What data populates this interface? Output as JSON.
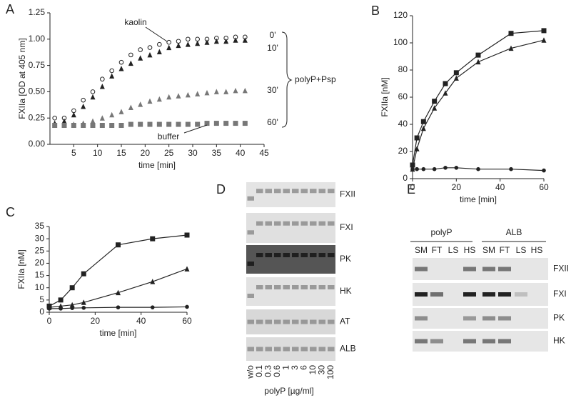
{
  "chart_data": [
    {
      "type": "scatter",
      "panel": "A",
      "xlabel": "time [min]",
      "ylabel": "FXIIa [OD at 405 nm]",
      "x": [
        1,
        3,
        5,
        7,
        9,
        11,
        13,
        15,
        17,
        19,
        21,
        23,
        25,
        27,
        29,
        31,
        33,
        35,
        37,
        39,
        41
      ],
      "xlim": [
        0,
        45
      ],
      "xticks": [
        5,
        10,
        15,
        20,
        25,
        30,
        35,
        40,
        45
      ],
      "ylim": [
        0,
        1.25
      ],
      "yticks": [
        {
          "value": 0,
          "label": "0.00"
        },
        {
          "value": 0.25,
          "label": "0.25"
        },
        {
          "value": 0.5,
          "label": "0.50"
        },
        {
          "value": 0.75,
          "label": "0.75"
        },
        {
          "value": 1,
          "label": "1.00"
        },
        {
          "value": 1.25,
          "label": "1.25"
        }
      ],
      "series": [
        {
          "name": "0'",
          "color": "#222",
          "marker": "open-circle",
          "values": [
            0.25,
            0.25,
            0.32,
            0.42,
            0.5,
            0.62,
            0.7,
            0.78,
            0.85,
            0.9,
            0.92,
            0.95,
            0.97,
            0.98,
            1.0,
            1.0,
            1.0,
            1.01,
            1.01,
            1.02,
            1.02
          ]
        },
        {
          "name": "10'",
          "color": "#222",
          "marker": "triangle",
          "values": [
            0.2,
            0.22,
            0.28,
            0.36,
            0.45,
            0.55,
            0.65,
            0.72,
            0.77,
            0.82,
            0.85,
            0.88,
            0.92,
            0.94,
            0.95,
            0.96,
            0.97,
            0.98,
            0.98,
            0.99,
            0.99
          ]
        },
        {
          "name": "30'",
          "color": "#777",
          "marker": "triangle",
          "values": [
            0.18,
            0.18,
            0.19,
            0.2,
            0.22,
            0.25,
            0.28,
            0.31,
            0.35,
            0.38,
            0.41,
            0.43,
            0.45,
            0.46,
            0.47,
            0.48,
            0.49,
            0.5,
            0.5,
            0.51,
            0.51
          ]
        },
        {
          "name": "60'",
          "color": "#777",
          "marker": "square",
          "values": [
            0.18,
            0.18,
            0.18,
            0.18,
            0.18,
            0.18,
            0.18,
            0.18,
            0.19,
            0.19,
            0.19,
            0.19,
            0.19,
            0.19,
            0.19,
            0.19,
            0.2,
            0.2,
            0.2,
            0.2,
            0.2
          ]
        }
      ],
      "annotations": [
        "kaolin",
        "buffer",
        "polyP+Psp"
      ]
    },
    {
      "type": "line",
      "panel": "B",
      "xlabel": "time [min]",
      "ylabel": "FXIIa [nM]",
      "x": [
        0,
        2,
        5,
        10,
        15,
        20,
        30,
        45,
        60
      ],
      "xlim": [
        0,
        60
      ],
      "xticks": [
        0,
        20,
        40,
        60
      ],
      "ylim": [
        0,
        120
      ],
      "yticks": [
        0,
        20,
        40,
        60,
        80,
        100,
        120
      ],
      "series": [
        {
          "color": "#222",
          "marker": "square",
          "values": [
            10,
            30,
            42,
            57,
            70,
            78,
            91,
            107,
            109
          ]
        },
        {
          "color": "#222",
          "marker": "triangle",
          "values": [
            7,
            22,
            37,
            52,
            63,
            74,
            86,
            96,
            102
          ]
        },
        {
          "color": "#222",
          "marker": "circle",
          "values": [
            7,
            7,
            7,
            7,
            8,
            8,
            7,
            7,
            6
          ]
        }
      ]
    },
    {
      "type": "line",
      "panel": "C",
      "xlabel": "time [min]",
      "ylabel": "FXIIa [nM]",
      "x": [
        0,
        5,
        10,
        15,
        30,
        45,
        60
      ],
      "xlim": [
        0,
        60
      ],
      "xticks": [
        0,
        20,
        40,
        60
      ],
      "ylim": [
        0,
        35
      ],
      "yticks": [
        0,
        5,
        10,
        15,
        20,
        25,
        30,
        35
      ],
      "series": [
        {
          "color": "#222",
          "marker": "square",
          "values": [
            2.5,
            5,
            10,
            15.7,
            27.5,
            30,
            31.5
          ]
        },
        {
          "color": "#222",
          "marker": "triangle",
          "values": [
            2,
            2.5,
            3,
            4,
            8,
            12.5,
            17.7
          ]
        },
        {
          "color": "#222",
          "marker": "circle",
          "values": [
            1.5,
            1.5,
            1.7,
            1.8,
            2,
            2,
            2.2
          ]
        }
      ]
    }
  ],
  "gel_d": {
    "panel": "D",
    "rows": [
      "FXII",
      "FXI",
      "PK",
      "HK",
      "AT",
      "ALB"
    ],
    "lanes": [
      "w/o",
      "0.1",
      "0.3",
      "0.6",
      "1",
      "3",
      "6",
      "10",
      "30",
      "100"
    ],
    "xlabel": "polyP [µg/ml]"
  },
  "gel_e": {
    "panel": "E",
    "groups": [
      "polyP",
      "ALB"
    ],
    "lanes": [
      "SM",
      "FT",
      "LS",
      "HS",
      "SM",
      "FT",
      "LS",
      "HS"
    ],
    "rows": [
      "FXII",
      "FXI",
      "PK",
      "HK"
    ]
  }
}
